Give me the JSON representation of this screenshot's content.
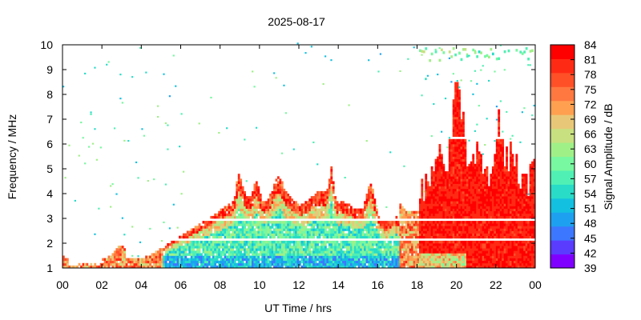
{
  "chart_data": {
    "type": "heatmap",
    "title": "2025-08-17",
    "xlabel": "UT Time / hrs",
    "ylabel": "Frequency / MHz",
    "colorbar_label": "Signal Amplitude / dB",
    "x_range": [
      0,
      24
    ],
    "y_range": [
      1,
      10
    ],
    "x_ticks": [
      "00",
      "02",
      "04",
      "06",
      "08",
      "10",
      "12",
      "14",
      "16",
      "18",
      "20",
      "22",
      "00"
    ],
    "y_ticks": [
      "1",
      "2",
      "3",
      "4",
      "5",
      "6",
      "7",
      "8",
      "9",
      "10"
    ],
    "colorbar_ticks": [
      "39",
      "42",
      "45",
      "48",
      "51",
      "54",
      "57",
      "60",
      "63",
      "66",
      "69",
      "72",
      "75",
      "78",
      "81",
      "84"
    ],
    "colorbar_range": [
      39,
      84
    ],
    "colorbar_colors": [
      "#8000ff",
      "#5a3cff",
      "#3c78ff",
      "#1ea0f0",
      "#14c0e0",
      "#28dcc8",
      "#50f0b4",
      "#78f8a0",
      "#a0f088",
      "#c8e080",
      "#e8c878",
      "#ffa050",
      "#ff7840",
      "#ff5028",
      "#ff2a14",
      "#ff0000"
    ],
    "background_color": "#ffffff",
    "grid": false
  }
}
